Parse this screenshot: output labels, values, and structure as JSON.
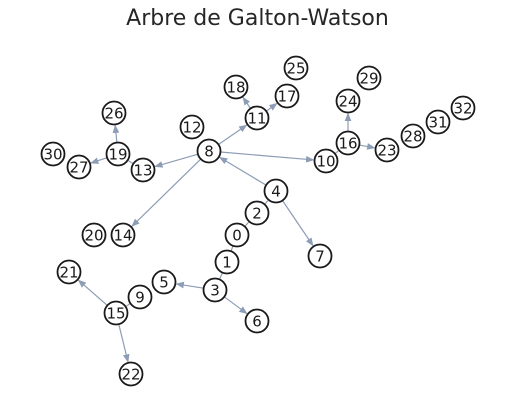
{
  "title": "Arbre de Galton-Watson",
  "colors": {
    "edge": "#8c9db5",
    "node_stroke": "#1a1a1a",
    "node_fill": "#ffffff",
    "text": "#1a1a1a"
  },
  "nodes": [
    "0",
    "1",
    "2",
    "3",
    "4",
    "5",
    "6",
    "7",
    "8",
    "9",
    "10",
    "11",
    "12",
    "13",
    "14",
    "15",
    "16",
    "17",
    "18",
    "19",
    "20",
    "21",
    "22",
    "23",
    "24",
    "25",
    "26",
    "27",
    "28",
    "29",
    "30",
    "31",
    "32"
  ],
  "edges": [
    {
      "from": "0",
      "to": "1",
      "arrow": false
    },
    {
      "from": "0",
      "to": "2",
      "arrow": false
    },
    {
      "from": "2",
      "to": "4",
      "arrow": false
    },
    {
      "from": "1",
      "to": "3",
      "arrow": false
    },
    {
      "from": "3",
      "to": "5",
      "arrow": true
    },
    {
      "from": "3",
      "to": "6",
      "arrow": true
    },
    {
      "from": "4",
      "to": "8",
      "arrow": true
    },
    {
      "from": "4",
      "to": "7",
      "arrow": true
    },
    {
      "from": "8",
      "to": "13",
      "arrow": true
    },
    {
      "from": "8",
      "to": "14",
      "arrow": true
    },
    {
      "from": "8",
      "to": "10",
      "arrow": true
    },
    {
      "from": "8",
      "to": "11",
      "arrow": true
    },
    {
      "from": "11",
      "to": "18",
      "arrow": true
    },
    {
      "from": "11",
      "to": "17",
      "arrow": true
    },
    {
      "from": "13",
      "to": "19",
      "arrow": false
    },
    {
      "from": "19",
      "to": "26",
      "arrow": true
    },
    {
      "from": "19",
      "to": "27",
      "arrow": true
    },
    {
      "from": "10",
      "to": "16",
      "arrow": false
    },
    {
      "from": "16",
      "to": "24",
      "arrow": true
    },
    {
      "from": "16",
      "to": "23",
      "arrow": true
    },
    {
      "from": "9",
      "to": "15",
      "arrow": false
    },
    {
      "from": "15",
      "to": "21",
      "arrow": true
    },
    {
      "from": "15",
      "to": "22",
      "arrow": true
    }
  ]
}
